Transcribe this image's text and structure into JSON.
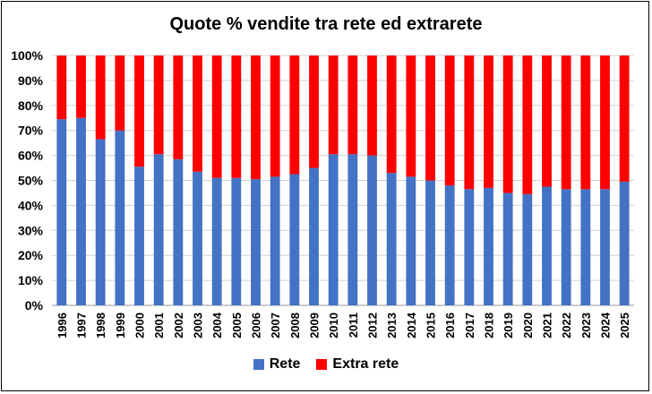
{
  "chart_data": {
    "type": "bar",
    "stacked": true,
    "title": "Quote % vendite tra rete ed extrarete",
    "categories": [
      "1996",
      "1997",
      "1998",
      "1999",
      "2000",
      "2001",
      "2002",
      "2003",
      "2004",
      "2005",
      "2006",
      "2007",
      "2008",
      "2009",
      "2010",
      "2011",
      "2012",
      "2013",
      "2014",
      "2015",
      "2016",
      "2017",
      "2018",
      "2019",
      "2020",
      "2021",
      "2022",
      "2023",
      "2024",
      "2025"
    ],
    "series": [
      {
        "name": "Rete",
        "color": "#4472C4",
        "values": [
          74.5,
          75,
          66.5,
          70,
          55.5,
          60.5,
          58.5,
          53.5,
          51,
          51,
          50.5,
          51.5,
          52.5,
          55,
          60.5,
          60.5,
          60,
          53,
          51.5,
          50,
          48,
          46.5,
          47,
          45,
          44.5,
          47.5,
          46.5,
          46.5,
          46.5,
          49.5
        ]
      },
      {
        "name": "Extra rete",
        "color": "#FF0000",
        "values": [
          25.5,
          25,
          33.5,
          30,
          44.5,
          39.5,
          41.5,
          46.5,
          49,
          49,
          49.5,
          48.5,
          47.5,
          45,
          39.5,
          39.5,
          40,
          47,
          48.5,
          50,
          52,
          53.5,
          53,
          55,
          55.5,
          52.5,
          53.5,
          53.5,
          53.5,
          50.5
        ]
      }
    ],
    "ylim": [
      0,
      100
    ],
    "yticks": [
      "0%",
      "10%",
      "20%",
      "30%",
      "40%",
      "50%",
      "60%",
      "70%",
      "80%",
      "90%",
      "100%"
    ],
    "grid": true,
    "legend_position": "bottom"
  }
}
